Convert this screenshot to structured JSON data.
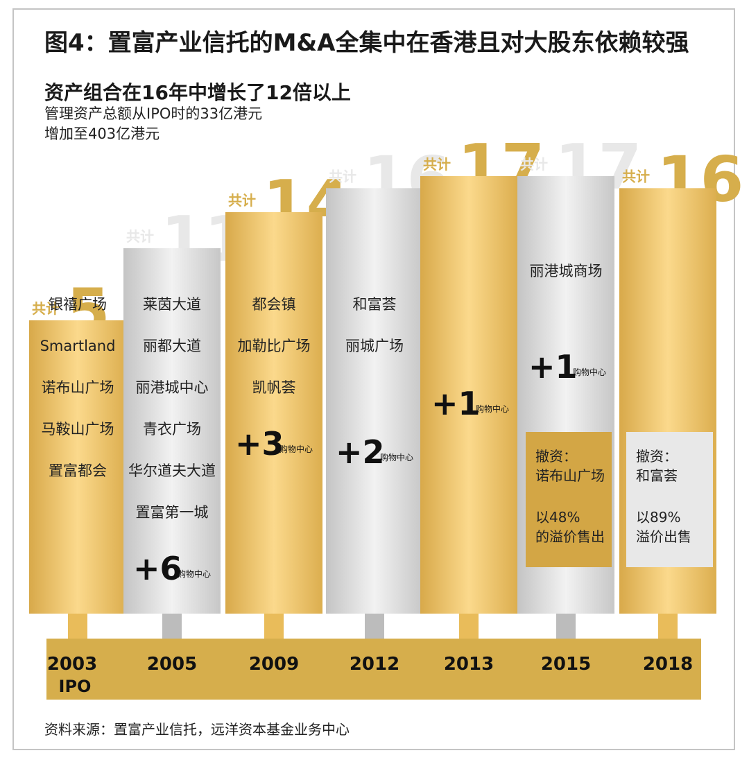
{
  "title": "图4：置富产业信托的M&A全集中在香港且对大股东依赖较强",
  "subtitle": "资产组合在16年中增长了12倍以上",
  "description": [
    "管理资产总额从IPO时的33亿港元",
    "增加至403亿港元"
  ],
  "source": "资料来源：置富产业信托，远洋资本基金业务中心",
  "colors": {
    "gold": "#e9bc5a",
    "gold_light": "#fbd98c",
    "gold_dark": "#d3a645",
    "silver": "#e6e6e6",
    "silver_dark": "#bcbcbc",
    "axis_bar": "#d6ae4c",
    "gold_number": "#d6ae4c",
    "silver_number": "#e8e8e8"
  },
  "chart_data": {
    "type": "bar",
    "total_prefix": "共计",
    "unit_label": "购物中心",
    "categories": [
      "2003",
      "2005",
      "2009",
      "2012",
      "2013",
      "2015",
      "2018"
    ],
    "category_sublabels": [
      "IPO",
      "",
      "",
      "",
      "",
      "",
      ""
    ],
    "values": [
      5,
      11,
      14,
      16,
      17,
      17,
      16
    ],
    "change_labels": [
      "",
      "+6",
      "+3",
      "+2",
      "+1",
      "+1",
      ""
    ],
    "styles": [
      "gold",
      "silver",
      "gold",
      "silver",
      "gold",
      "silver",
      "gold"
    ],
    "assets": [
      [
        "银禧广场",
        "Smartland",
        "诺布山广场",
        "马鞍山广场",
        "置富都会"
      ],
      [
        "莱茵大道",
        "丽都大道",
        "丽港城中心",
        "青衣广场",
        "华尔道夫大道",
        "置富第一城"
      ],
      [
        "都会镇",
        "加勒比广场",
        "凯帆荟"
      ],
      [
        "和富荟",
        "丽城广场"
      ],
      [],
      [
        "丽港城商场"
      ],
      []
    ],
    "divestments": [
      null,
      null,
      null,
      null,
      null,
      {
        "lines1": [
          "撤资：",
          "诺布山广场"
        ],
        "lines2": [
          "以48%",
          "的溢价售出"
        ]
      },
      {
        "lines1": [
          "撤资：",
          "和富荟"
        ],
        "lines2": [
          "以89%",
          "溢价出售"
        ]
      }
    ]
  }
}
